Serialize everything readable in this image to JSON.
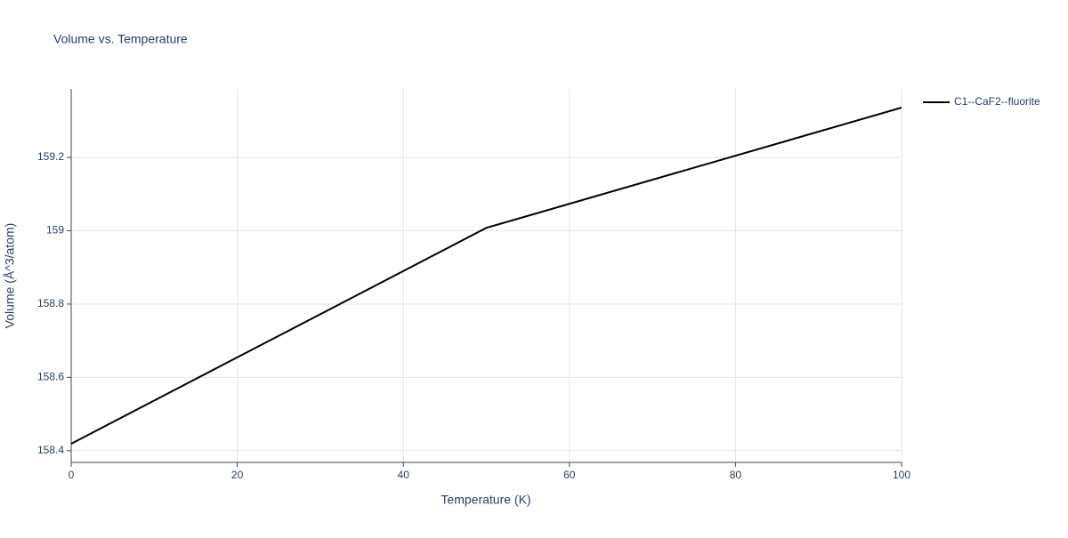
{
  "chart_data": {
    "type": "line",
    "title": "Volume vs. Temperature",
    "x_label": "Temperature (K)",
    "y_label": "Volume (Å^3/atom)",
    "x": [
      0,
      50,
      100
    ],
    "series": [
      {
        "name": "C1--CaF2--fluorite",
        "color": "#000000",
        "values": [
          158.419,
          159.008,
          159.336
        ]
      }
    ],
    "xlim": [
      0,
      100
    ],
    "xticks": [
      0,
      20,
      40,
      60,
      80,
      100
    ],
    "ylim": [
      158.368,
      159.387
    ],
    "yticks": [
      158.4,
      158.6,
      158.8,
      159,
      159.2
    ],
    "grid": true,
    "legend": "right"
  }
}
